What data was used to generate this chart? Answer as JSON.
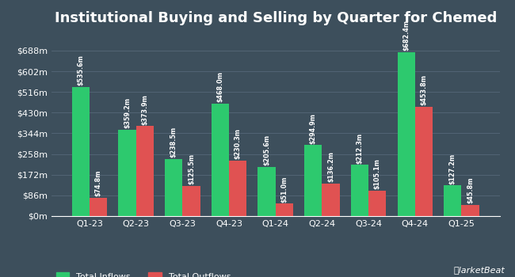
{
  "title": "Institutional Buying and Selling by Quarter for Chemed",
  "categories": [
    "Q1-23",
    "Q2-23",
    "Q3-23",
    "Q4-23",
    "Q1-24",
    "Q2-24",
    "Q3-24",
    "Q4-24",
    "Q1-25"
  ],
  "inflows": [
    535.6,
    359.2,
    238.5,
    468.0,
    205.6,
    294.9,
    212.3,
    682.4,
    127.2
  ],
  "outflows": [
    74.8,
    373.9,
    125.5,
    230.3,
    51.0,
    136.2,
    105.1,
    453.8,
    45.8
  ],
  "inflow_labels": [
    "$535.6m",
    "$359.2m",
    "$238.5m",
    "$468.0m",
    "$205.6m",
    "$294.9m",
    "$212.3m",
    "$682.4m",
    "$127.2m"
  ],
  "outflow_labels": [
    "$74.8m",
    "$373.9m",
    "$125.5m",
    "$230.3m",
    "$51.0m",
    "$136.2m",
    "$105.1m",
    "$453.8m",
    "$45.8m"
  ],
  "inflow_color": "#2dc96e",
  "outflow_color": "#e05252",
  "background_color": "#3d4f5c",
  "text_color": "#ffffff",
  "grid_color": "#566878",
  "yticks": [
    0,
    86,
    172,
    258,
    344,
    430,
    516,
    602,
    688
  ],
  "ytick_labels": [
    "$0m",
    "$86m",
    "$172m",
    "$258m",
    "$344m",
    "$430m",
    "$516m",
    "$602m",
    "$688m"
  ],
  "ylim": [
    0,
    760
  ],
  "legend_inflow": "Total Inflows",
  "legend_outflow": "Total Outflows",
  "bar_width": 0.38,
  "label_fontsize": 5.8,
  "title_fontsize": 13,
  "tick_fontsize": 8,
  "xlabel_fontsize": 8
}
